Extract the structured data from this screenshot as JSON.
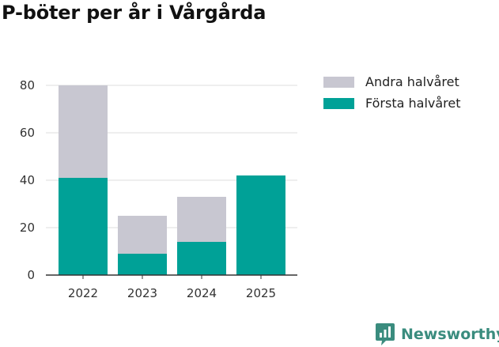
{
  "title": "P-böter per år i Vårgårda",
  "chart_data": {
    "type": "bar",
    "stacked": true,
    "title": "P-böter per år i Vårgårda",
    "categories": [
      "2022",
      "2023",
      "2024",
      "2025"
    ],
    "series": [
      {
        "name": "Första halvåret",
        "values": [
          41,
          9,
          14,
          42
        ],
        "color": "#00a197"
      },
      {
        "name": "Andra halvåret",
        "values": [
          39,
          16,
          19,
          0
        ],
        "color": "#c8c7d1"
      }
    ],
    "ylim": [
      0,
      80
    ],
    "yticks": [
      0,
      20,
      40,
      60,
      80
    ],
    "grid": true,
    "xlabel": "",
    "ylabel": "",
    "legend_position": "right",
    "legend_order": [
      "Andra halvåret",
      "Första halvåret"
    ]
  },
  "colors": {
    "primary": "#00a197",
    "secondary": "#c8c7d1",
    "grid": "#dddddd",
    "axis": "#333333",
    "brand": "#3a8c7e"
  },
  "brand": {
    "name": "Newsworthy",
    "icon": "newsworthy-logo-icon"
  }
}
